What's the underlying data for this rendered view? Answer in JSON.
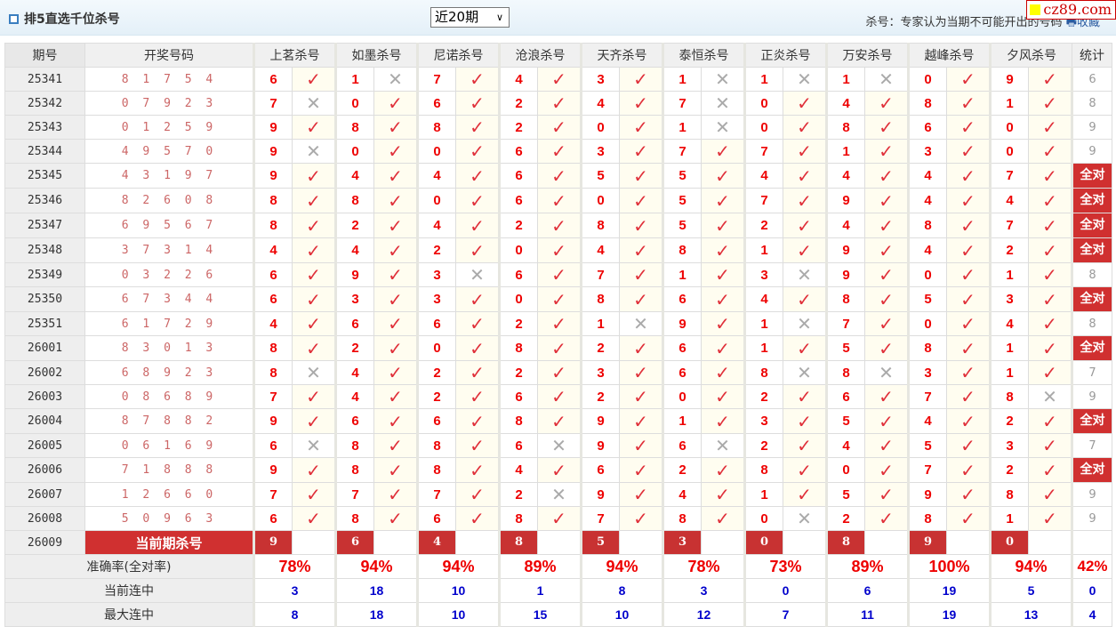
{
  "header": {
    "title": "排5直选千位杀号",
    "period_select": "近20期",
    "note": "杀号：专家认为当期不可能开出的号码",
    "favorite": "收藏",
    "logo": "cz89.com"
  },
  "columns": {
    "issue": "期号",
    "draw": "开奖号码",
    "experts": [
      "上茗杀号",
      "如墨杀号",
      "尼诺杀号",
      "沧浪杀号",
      "天齐杀号",
      "泰恒杀号",
      "正炎杀号",
      "万安杀号",
      "越峰杀号",
      "夕风杀号"
    ],
    "stat": "统计"
  },
  "colors": {
    "accent": "#d03030",
    "kill": "#ee0000",
    "check": "#e0303a",
    "cross": "#aaaaaa",
    "streak": "#0000cc"
  },
  "rows": [
    {
      "issue": "25341",
      "draw": "8 1 7 5 4",
      "kills": [
        "6",
        "1",
        "7",
        "4",
        "3",
        "1",
        "1",
        "1",
        "0",
        "9"
      ],
      "ok": [
        1,
        0,
        1,
        1,
        1,
        0,
        0,
        0,
        1,
        1
      ],
      "stat": "6"
    },
    {
      "issue": "25342",
      "draw": "0 7 9 2 3",
      "kills": [
        "7",
        "0",
        "6",
        "2",
        "4",
        "7",
        "0",
        "4",
        "8",
        "1"
      ],
      "ok": [
        0,
        1,
        1,
        1,
        1,
        0,
        1,
        1,
        1,
        1
      ],
      "stat": "8"
    },
    {
      "issue": "25343",
      "draw": "0 1 2 5 9",
      "kills": [
        "9",
        "8",
        "8",
        "2",
        "0",
        "1",
        "0",
        "8",
        "6",
        "0"
      ],
      "ok": [
        1,
        1,
        1,
        1,
        1,
        0,
        1,
        1,
        1,
        1
      ],
      "stat": "9"
    },
    {
      "issue": "25344",
      "draw": "4 9 5 7 0",
      "kills": [
        "9",
        "0",
        "0",
        "6",
        "3",
        "7",
        "7",
        "1",
        "3",
        "0"
      ],
      "ok": [
        0,
        1,
        1,
        1,
        1,
        1,
        1,
        1,
        1,
        1
      ],
      "stat": "9"
    },
    {
      "issue": "25345",
      "draw": "4 3 1 9 7",
      "kills": [
        "9",
        "4",
        "4",
        "6",
        "5",
        "5",
        "4",
        "4",
        "4",
        "7"
      ],
      "ok": [
        1,
        1,
        1,
        1,
        1,
        1,
        1,
        1,
        1,
        1
      ],
      "stat": "全对"
    },
    {
      "issue": "25346",
      "draw": "8 2 6 0 8",
      "kills": [
        "8",
        "8",
        "0",
        "6",
        "0",
        "5",
        "7",
        "9",
        "4",
        "4"
      ],
      "ok": [
        1,
        1,
        1,
        1,
        1,
        1,
        1,
        1,
        1,
        1
      ],
      "stat": "全对"
    },
    {
      "issue": "25347",
      "draw": "6 9 5 6 7",
      "kills": [
        "8",
        "2",
        "4",
        "2",
        "8",
        "5",
        "2",
        "4",
        "8",
        "7"
      ],
      "ok": [
        1,
        1,
        1,
        1,
        1,
        1,
        1,
        1,
        1,
        1
      ],
      "stat": "全对"
    },
    {
      "issue": "25348",
      "draw": "3 7 3 1 4",
      "kills": [
        "4",
        "4",
        "2",
        "0",
        "4",
        "8",
        "1",
        "9",
        "4",
        "2"
      ],
      "ok": [
        1,
        1,
        1,
        1,
        1,
        1,
        1,
        1,
        1,
        1
      ],
      "stat": "全对"
    },
    {
      "issue": "25349",
      "draw": "0 3 2 2 6",
      "kills": [
        "6",
        "9",
        "3",
        "6",
        "7",
        "1",
        "3",
        "9",
        "0",
        "1"
      ],
      "ok": [
        1,
        1,
        0,
        1,
        1,
        1,
        0,
        1,
        1,
        1
      ],
      "stat": "8"
    },
    {
      "issue": "25350",
      "draw": "6 7 3 4 4",
      "kills": [
        "6",
        "3",
        "3",
        "0",
        "8",
        "6",
        "4",
        "8",
        "5",
        "3"
      ],
      "ok": [
        1,
        1,
        1,
        1,
        1,
        1,
        1,
        1,
        1,
        1
      ],
      "stat": "全对"
    },
    {
      "issue": "25351",
      "draw": "6 1 7 2 9",
      "kills": [
        "4",
        "6",
        "6",
        "2",
        "1",
        "9",
        "1",
        "7",
        "0",
        "4"
      ],
      "ok": [
        1,
        1,
        1,
        1,
        0,
        1,
        0,
        1,
        1,
        1
      ],
      "stat": "8"
    },
    {
      "issue": "26001",
      "draw": "8 3 0 1 3",
      "kills": [
        "8",
        "2",
        "0",
        "8",
        "2",
        "6",
        "1",
        "5",
        "8",
        "1"
      ],
      "ok": [
        1,
        1,
        1,
        1,
        1,
        1,
        1,
        1,
        1,
        1
      ],
      "stat": "全对"
    },
    {
      "issue": "26002",
      "draw": "6 8 9 2 3",
      "kills": [
        "8",
        "4",
        "2",
        "2",
        "3",
        "6",
        "8",
        "8",
        "3",
        "1"
      ],
      "ok": [
        0,
        1,
        1,
        1,
        1,
        1,
        0,
        0,
        1,
        1
      ],
      "stat": "7"
    },
    {
      "issue": "26003",
      "draw": "0 8 6 8 9",
      "kills": [
        "7",
        "4",
        "2",
        "6",
        "2",
        "0",
        "2",
        "6",
        "7",
        "8"
      ],
      "ok": [
        1,
        1,
        1,
        1,
        1,
        1,
        1,
        1,
        1,
        0
      ],
      "stat": "9"
    },
    {
      "issue": "26004",
      "draw": "8 7 8 8 2",
      "kills": [
        "9",
        "6",
        "6",
        "8",
        "9",
        "1",
        "3",
        "5",
        "4",
        "2"
      ],
      "ok": [
        1,
        1,
        1,
        1,
        1,
        1,
        1,
        1,
        1,
        1
      ],
      "stat": "全对"
    },
    {
      "issue": "26005",
      "draw": "0 6 1 6 9",
      "kills": [
        "6",
        "8",
        "8",
        "6",
        "9",
        "6",
        "2",
        "4",
        "5",
        "3"
      ],
      "ok": [
        0,
        1,
        1,
        0,
        1,
        0,
        1,
        1,
        1,
        1
      ],
      "stat": "7"
    },
    {
      "issue": "26006",
      "draw": "7 1 8 8 8",
      "kills": [
        "9",
        "8",
        "8",
        "4",
        "6",
        "2",
        "8",
        "0",
        "7",
        "2"
      ],
      "ok": [
        1,
        1,
        1,
        1,
        1,
        1,
        1,
        1,
        1,
        1
      ],
      "stat": "全对"
    },
    {
      "issue": "26007",
      "draw": "1 2 6 6 0",
      "kills": [
        "7",
        "7",
        "7",
        "2",
        "9",
        "4",
        "1",
        "5",
        "9",
        "8"
      ],
      "ok": [
        1,
        1,
        1,
        0,
        1,
        1,
        1,
        1,
        1,
        1
      ],
      "stat": "9"
    },
    {
      "issue": "26008",
      "draw": "5 0 9 6 3",
      "kills": [
        "6",
        "8",
        "6",
        "8",
        "7",
        "8",
        "0",
        "2",
        "8",
        "1"
      ],
      "ok": [
        1,
        1,
        1,
        1,
        1,
        1,
        0,
        1,
        1,
        1
      ],
      "stat": "9"
    }
  ],
  "current": {
    "issue": "26009",
    "label": "当前期杀号",
    "kills": [
      "9",
      "6",
      "4",
      "8",
      "5",
      "3",
      "0",
      "8",
      "9",
      "0"
    ]
  },
  "summary": {
    "accuracy_label": "准确率(全对率)",
    "accuracy": [
      "78%",
      "94%",
      "94%",
      "89%",
      "94%",
      "78%",
      "73%",
      "89%",
      "100%",
      "94%"
    ],
    "accuracy_all": "42%",
    "current_streak_label": "当前连中",
    "current_streak": [
      "3",
      "18",
      "10",
      "1",
      "8",
      "3",
      "0",
      "6",
      "19",
      "5"
    ],
    "current_streak_all": "0",
    "max_streak_label": "最大连中",
    "max_streak": [
      "8",
      "18",
      "10",
      "15",
      "10",
      "12",
      "7",
      "11",
      "19",
      "13"
    ],
    "max_streak_all": "4"
  }
}
